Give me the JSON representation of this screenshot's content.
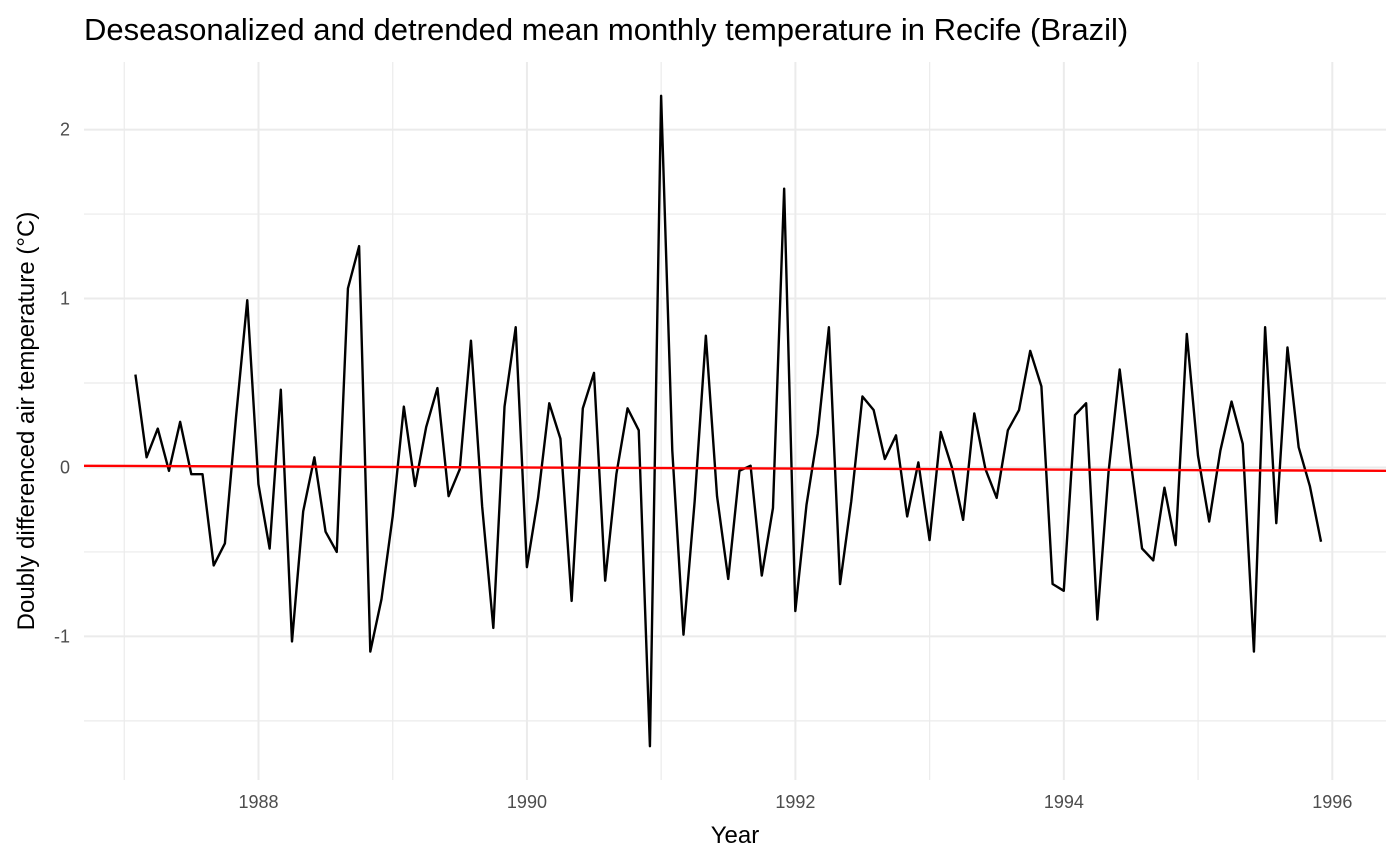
{
  "chart_data": {
    "type": "line",
    "title": "Deseasonalized and detrended mean monthly temperature in Recife (Brazil)",
    "xlabel": "Year",
    "ylabel": "Doubly differenced air temperature (°C)",
    "xlim": [
      1986.7,
      1996.4
    ],
    "ylim": [
      -1.85,
      2.4
    ],
    "x_ticks": [
      1988,
      1990,
      1992,
      1994,
      1996
    ],
    "x_tick_labels": [
      "1988",
      "1990",
      "1992",
      "1994",
      "1996"
    ],
    "y_ticks": [
      -1,
      0,
      1,
      2
    ],
    "y_tick_labels": [
      "-1",
      "0",
      "1",
      "2"
    ],
    "grid": true,
    "legend": "none",
    "x_start": 1987.083,
    "x_step": 0.08333,
    "series": [
      {
        "color": "#000000",
        "values": [
          0.55,
          0.06,
          0.23,
          -0.02,
          0.27,
          -0.04,
          -0.04,
          -0.58,
          -0.45,
          0.3,
          0.99,
          -0.1,
          -0.48,
          0.46,
          -1.03,
          -0.26,
          0.06,
          -0.38,
          -0.5,
          1.06,
          1.31,
          -1.09,
          -0.78,
          -0.29,
          0.36,
          -0.11,
          0.24,
          0.47,
          -0.17,
          -0.01,
          0.75,
          -0.23,
          -0.95,
          0.36,
          0.83,
          -0.59,
          -0.18,
          0.38,
          0.17,
          -0.79,
          0.35,
          0.56,
          -0.67,
          -0.04,
          0.35,
          0.22,
          -1.65,
          2.2,
          0.1,
          -0.99,
          -0.2,
          0.78,
          -0.17,
          -0.66,
          -0.02,
          0.01,
          -0.64,
          -0.24,
          1.65,
          -0.85,
          -0.22,
          0.2,
          0.83,
          -0.69,
          -0.2,
          0.42,
          0.34,
          0.05,
          0.19,
          -0.29,
          0.03,
          -0.43,
          0.21,
          0.0,
          -0.31,
          0.32,
          -0.01,
          -0.18,
          0.22,
          0.34,
          0.69,
          0.48,
          -0.69,
          -0.73,
          0.31,
          0.38,
          -0.9,
          -0.03,
          0.58,
          0.03,
          -0.48,
          -0.55,
          -0.12,
          -0.46,
          0.79,
          0.07,
          -0.32,
          0.1,
          0.39,
          0.14,
          -1.09,
          0.83,
          -0.33,
          0.71,
          0.12,
          -0.11,
          -0.44
        ]
      }
    ],
    "trend_line": {
      "color": "#ff0000",
      "x": [
        1986.7,
        1996.4
      ],
      "y": [
        0.01,
        -0.02
      ]
    }
  }
}
